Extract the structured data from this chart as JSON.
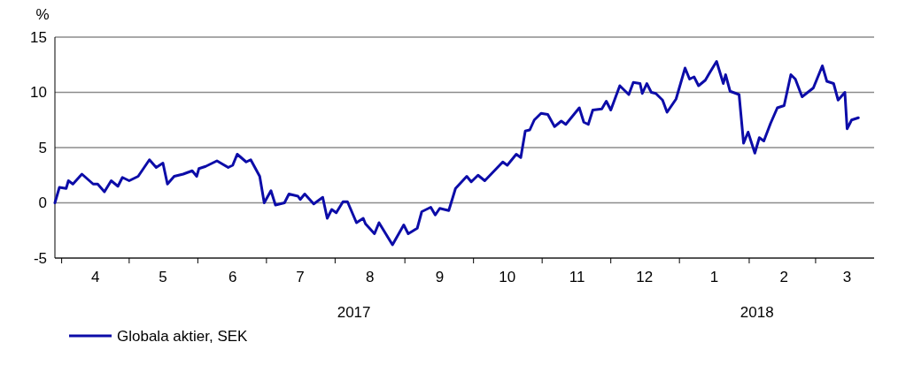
{
  "chart_data": {
    "type": "line",
    "ylabel": "%",
    "xlim": [
      "2017-03-28",
      "2018-03-27"
    ],
    "ylim": [
      -5,
      15
    ],
    "yticks": [
      -5,
      0,
      5,
      10,
      15
    ],
    "xticks": [
      {
        "value": "2017-04-15",
        "label": "4"
      },
      {
        "value": "2017-05-15",
        "label": "5"
      },
      {
        "value": "2017-06-15",
        "label": "6"
      },
      {
        "value": "2017-07-15",
        "label": "7"
      },
      {
        "value": "2017-08-15",
        "label": "8"
      },
      {
        "value": "2017-09-15",
        "label": "9"
      },
      {
        "value": "2017-10-15",
        "label": "10"
      },
      {
        "value": "2017-11-15",
        "label": "11"
      },
      {
        "value": "2017-12-15",
        "label": "12"
      },
      {
        "value": "2018-01-15",
        "label": "1"
      },
      {
        "value": "2018-02-15",
        "label": "2"
      },
      {
        "value": "2018-03-15",
        "label": "3"
      }
    ],
    "annotations": [
      "2017",
      "2018"
    ],
    "grid": "y",
    "legend": "bottom",
    "line_style": "solid",
    "marker": "none",
    "series": [
      {
        "name": "Globala aktier, SEK",
        "color": "#0c0ca8",
        "x": [
          "2017-03-28",
          "2017-03-30",
          "2017-04-02",
          "2017-04-03",
          "2017-04-05",
          "2017-04-09",
          "2017-04-14",
          "2017-04-16",
          "2017-04-19",
          "2017-04-22",
          "2017-04-25",
          "2017-04-27",
          "2017-04-30",
          "2017-05-04",
          "2017-05-09",
          "2017-05-12",
          "2017-05-15",
          "2017-05-17",
          "2017-05-20",
          "2017-05-24",
          "2017-05-28",
          "2017-05-30",
          "2017-05-31",
          "2017-06-03",
          "2017-06-08",
          "2017-06-13",
          "2017-06-15",
          "2017-06-17",
          "2017-06-21",
          "2017-06-23",
          "2017-06-27",
          "2017-06-29",
          "2017-07-02",
          "2017-07-04",
          "2017-07-08",
          "2017-07-10",
          "2017-07-14",
          "2017-07-15",
          "2017-07-17",
          "2017-07-21",
          "2017-07-25",
          "2017-07-27",
          "2017-07-29",
          "2017-07-31",
          "2017-08-03",
          "2017-08-05",
          "2017-08-09",
          "2017-08-12",
          "2017-08-13",
          "2017-08-17",
          "2017-08-19",
          "2017-08-22",
          "2017-08-25",
          "2017-08-30",
          "2017-09-01",
          "2017-09-05",
          "2017-09-07",
          "2017-09-11",
          "2017-09-13",
          "2017-09-15",
          "2017-09-19",
          "2017-09-22",
          "2017-09-27",
          "2017-09-29",
          "2017-10-02",
          "2017-10-05",
          "2017-10-13",
          "2017-10-15",
          "2017-10-19",
          "2017-10-21",
          "2017-10-23",
          "2017-10-25",
          "2017-10-27",
          "2017-10-30",
          "2017-11-02",
          "2017-11-05",
          "2017-11-08",
          "2017-11-10",
          "2017-11-16",
          "2017-11-18",
          "2017-11-20",
          "2017-11-22",
          "2017-11-26",
          "2017-11-28",
          "2017-11-30",
          "2017-12-04",
          "2017-12-06",
          "2017-12-08",
          "2017-12-10",
          "2017-12-13",
          "2017-12-14",
          "2017-12-16",
          "2017-12-18",
          "2017-12-20",
          "2017-12-23",
          "2017-12-25",
          "2017-12-29",
          "2018-01-02",
          "2018-01-04",
          "2018-01-06",
          "2018-01-08",
          "2018-01-11",
          "2018-01-13",
          "2018-01-16",
          "2018-01-19",
          "2018-01-20",
          "2018-01-22",
          "2018-01-26",
          "2018-01-28",
          "2018-01-30",
          "2018-02-02",
          "2018-02-04",
          "2018-02-06",
          "2018-02-09",
          "2018-02-12",
          "2018-02-15",
          "2018-02-18",
          "2018-02-20",
          "2018-02-23",
          "2018-02-28",
          "2018-03-04",
          "2018-03-06",
          "2018-03-09",
          "2018-03-11",
          "2018-03-14",
          "2018-03-15",
          "2018-03-17",
          "2018-03-20"
        ],
        "values": [
          0,
          1.4,
          1.3,
          2.0,
          1.7,
          2.6,
          1.7,
          1.7,
          1.0,
          2.0,
          1.5,
          2.3,
          2.0,
          2.4,
          3.9,
          3.2,
          3.6,
          1.7,
          2.4,
          2.6,
          2.9,
          2.4,
          3.1,
          3.3,
          3.8,
          3.2,
          3.4,
          4.4,
          3.7,
          3.9,
          2.4,
          0.0,
          1.1,
          -0.2,
          0.0,
          0.8,
          0.6,
          0.3,
          0.8,
          -0.1,
          0.5,
          -1.4,
          -0.6,
          -0.9,
          0.1,
          0.1,
          -1.8,
          -1.4,
          -1.9,
          -2.8,
          -1.8,
          -2.8,
          -3.8,
          -2.0,
          -2.8,
          -2.3,
          -0.8,
          -0.4,
          -1.1,
          -0.5,
          -0.7,
          1.3,
          2.4,
          1.9,
          2.5,
          2.0,
          3.7,
          3.4,
          4.4,
          4.1,
          6.5,
          6.6,
          7.5,
          8.1,
          8.0,
          6.9,
          7.4,
          7.1,
          8.6,
          7.3,
          7.1,
          8.4,
          8.5,
          9.2,
          8.4,
          10.6,
          10.2,
          9.8,
          10.9,
          10.8,
          9.9,
          10.8,
          10.0,
          9.9,
          9.3,
          8.2,
          9.4,
          12.2,
          11.2,
          11.4,
          10.6,
          11.1,
          11.8,
          12.8,
          10.8,
          11.6,
          10.1,
          9.8,
          5.4,
          6.4,
          4.5,
          5.9,
          5.6,
          7.2,
          8.6,
          8.8,
          11.6,
          11.2,
          9.6,
          10.4,
          12.4,
          11.0,
          10.8,
          9.3,
          10.0,
          6.7,
          7.5,
          7.7
        ]
      }
    ]
  }
}
